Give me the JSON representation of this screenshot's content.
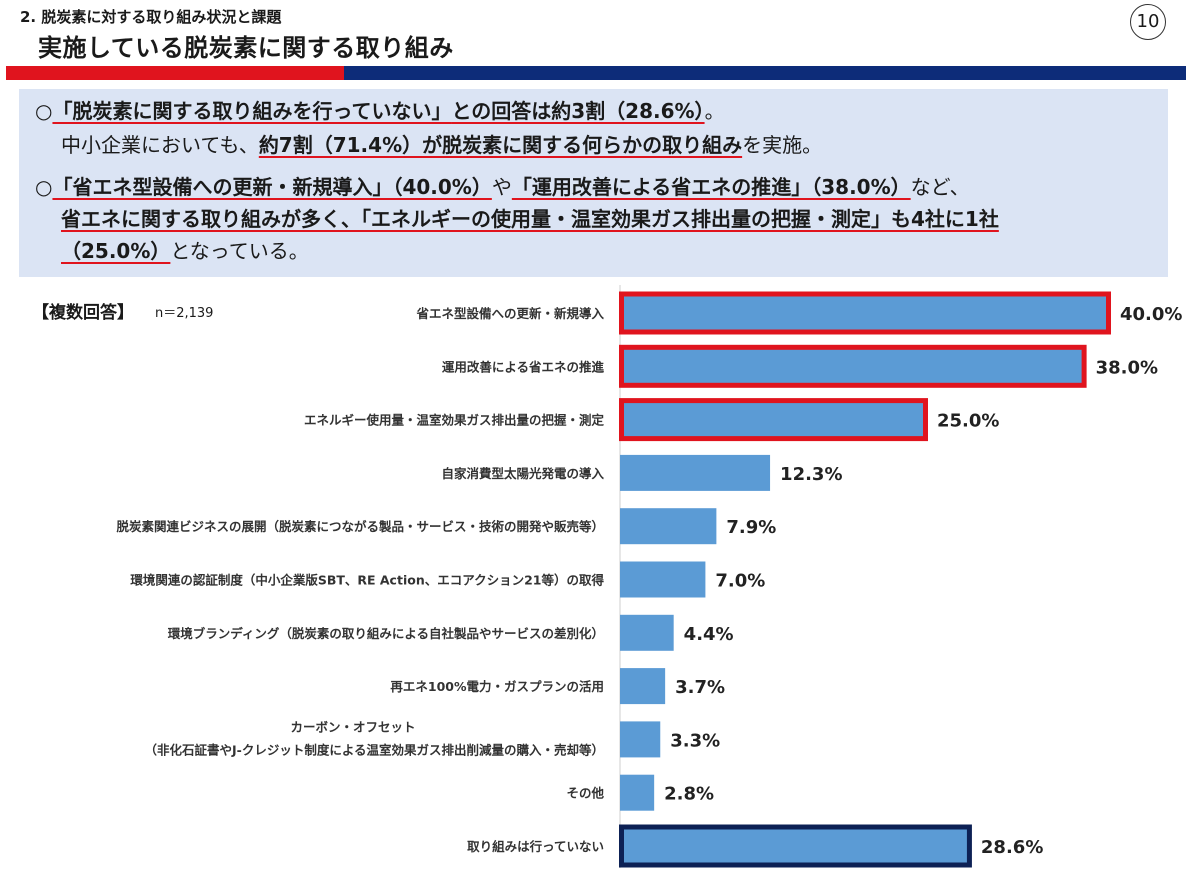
{
  "header": {
    "section_title": "2.  脱炭素に対する取り組み状況と課題",
    "main_title": "実施している脱炭素に関する取り組み",
    "page_number": "10"
  },
  "summary": {
    "bullet": "○",
    "line1": {
      "quote": "「脱炭素に関する取り組みを行っていない」",
      "mid": "との回答は約3割（28.6%）",
      "end": "。"
    },
    "line2": {
      "pre": "中小企業においても、",
      "emph": "約7割（71.4%）が脱炭素に関する何らかの取り組み",
      "post": "を実施。"
    },
    "line3": {
      "emph1": "「省エネ型設備への更新・新規導入」（40.0%）",
      "mid": "や",
      "emph2": "「運用改善による省エネの推進」（38.0%）",
      "post": "など、"
    },
    "line4": {
      "emph1": "省エネに関する取り組みが多く、",
      "emph2": "「エネルギーの使用量・温室効果ガス排出量の把握・測定」も4社に1社"
    },
    "line5": {
      "emph": "（25.0%）",
      "post": "となっている。"
    }
  },
  "chart_header": {
    "label": "【複数回答】",
    "n": "n＝2,139"
  },
  "chart_data": {
    "type": "bar",
    "orientation": "horizontal",
    "categories": [
      "省エネ型設備への更新・新規導入",
      "運用改善による省エネの推進",
      "エネルギー使用量・温室効果ガス排出量の把握・測定",
      "自家消費型太陽光発電の導入",
      "脱炭素関連ビジネスの展開（脱炭素につながる製品・サービス・技術の開発や販売等）",
      "環境関連の認証制度（中小企業版SBT、RE Action、エコアクション21等）の取得",
      "環境ブランディング（脱炭素の取り組みによる自社製品やサービスの差別化）",
      "再エネ100%電力・ガスプランの活用",
      "カーボン・オフセット\n（非化石証書やJ-クレジット制度による温室効果ガス排出削減量の購入・売却等）",
      "その他",
      "取り組みは行っていない"
    ],
    "values": [
      40.0,
      38.0,
      25.0,
      12.3,
      7.9,
      7.0,
      4.4,
      3.7,
      3.3,
      2.8,
      28.6
    ],
    "value_labels": [
      "40.0%",
      "38.0%",
      "25.0%",
      "12.3%",
      "7.9%",
      "7.0%",
      "4.4%",
      "3.7%",
      "3.3%",
      "2.8%",
      "28.6%"
    ],
    "highlight": [
      "red",
      "red",
      "red",
      "none",
      "none",
      "none",
      "none",
      "none",
      "none",
      "none",
      "navy"
    ],
    "colors": {
      "bar": "#5b9bd5",
      "red": "#e0141e",
      "navy": "#0d2155"
    },
    "xlim": [
      0,
      40
    ]
  }
}
